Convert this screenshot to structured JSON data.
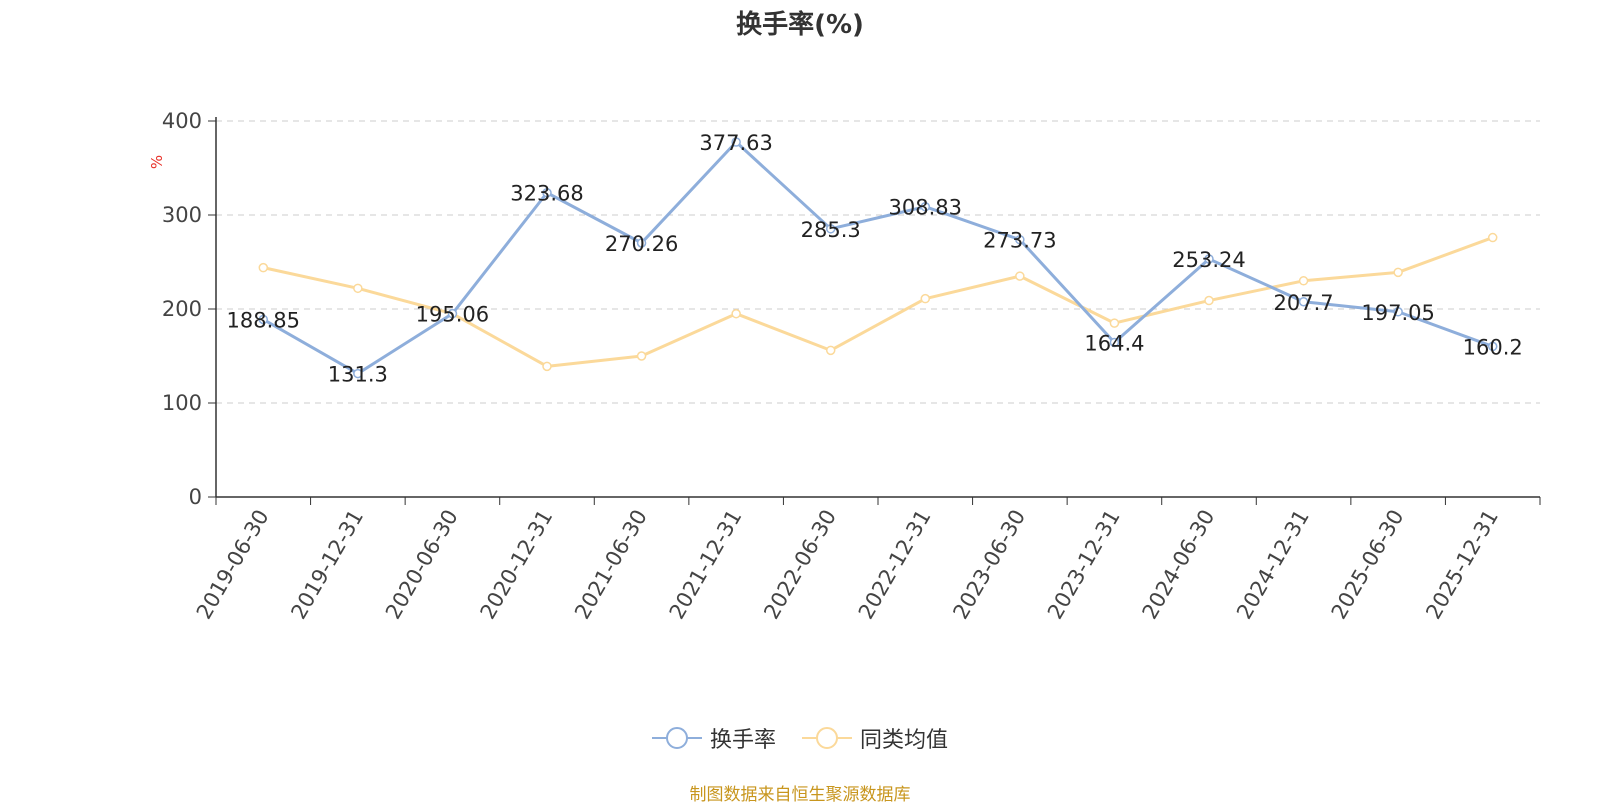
{
  "chart_data": {
    "type": "line",
    "title": "换手率(%)",
    "ylabel": "%",
    "ylim": [
      0,
      400
    ],
    "yticks": [
      0,
      100,
      200,
      300,
      400
    ],
    "grid": true,
    "legend_position": "bottom",
    "categories": [
      "2019-06-30",
      "2019-12-31",
      "2020-06-30",
      "2020-12-31",
      "2021-06-30",
      "2021-12-31",
      "2022-06-30",
      "2022-12-31",
      "2023-06-30",
      "2023-12-31",
      "2024-06-30",
      "2024-12-31",
      "2025-06-30",
      "2025-12-31"
    ],
    "series": [
      {
        "name": "换手率",
        "color": "#8eaedb",
        "values": [
          188.85,
          131.3,
          195.06,
          323.68,
          270.26,
          377.63,
          285.3,
          308.83,
          273.73,
          164.4,
          253.24,
          207.7,
          197.05,
          160.2
        ],
        "labels": [
          "188.85",
          "131.3",
          "195.06",
          "323.68",
          "270.26",
          "377.63",
          "285.3",
          "308.83",
          "273.73",
          "164.4",
          "253.24",
          "207.7",
          "197.05",
          "160.2"
        ]
      },
      {
        "name": "同类均值",
        "color": "#fbd99a",
        "values": [
          244,
          222,
          195,
          139,
          150,
          195,
          156,
          211,
          235,
          185,
          209,
          230,
          239,
          276
        ]
      }
    ]
  },
  "source_text": "制图数据来自恒生聚源数据库"
}
